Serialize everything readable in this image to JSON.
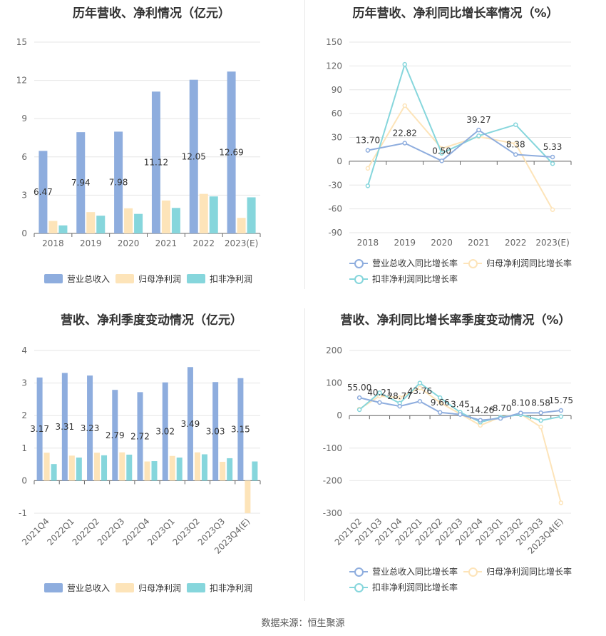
{
  "source_text": "数据来源：恒生聚源",
  "chart_data": [
    {
      "id": "annual_values",
      "type": "bar",
      "title": "历年营收、净利情况（亿元）",
      "categories": [
        "2018",
        "2019",
        "2020",
        "2021",
        "2022",
        "2023(E)"
      ],
      "ylim": [
        0,
        15
      ],
      "yticks": [
        0,
        3,
        6,
        9,
        12,
        15
      ],
      "grid": true,
      "legend_position": "bottom",
      "series": [
        {
          "name": "营业总收入",
          "color": "#8eadde",
          "values": [
            6.47,
            7.94,
            7.98,
            11.12,
            12.05,
            12.69
          ],
          "labels": [
            "6.47",
            "7.94",
            "7.98",
            "11.12",
            "12.05",
            "12.69"
          ]
        },
        {
          "name": "归母净利润",
          "color": "#fde4b9",
          "values": [
            0.98,
            1.67,
            1.97,
            2.58,
            3.1,
            1.22
          ]
        },
        {
          "name": "扣非净利润",
          "color": "#86d6dc",
          "values": [
            0.63,
            1.39,
            1.53,
            2.0,
            2.9,
            2.83
          ]
        }
      ]
    },
    {
      "id": "annual_growth",
      "type": "line",
      "title": "历年营收、净利同比增长率情况（%）",
      "categories": [
        "2018",
        "2019",
        "2020",
        "2021",
        "2022",
        "2023(E)"
      ],
      "ylim": [
        -90,
        150
      ],
      "yticks": [
        -90,
        -60,
        -30,
        0,
        30,
        60,
        90,
        120,
        150
      ],
      "grid": true,
      "legend_position": "bottom",
      "series": [
        {
          "name": "营业总收入同比增长率",
          "color": "#8eadde",
          "values": [
            13.7,
            22.82,
            0.5,
            39.27,
            8.38,
            5.33
          ],
          "labels": [
            "13.70",
            "22.82",
            "0.50",
            "39.27",
            "8.38",
            "5.33"
          ]
        },
        {
          "name": "归母净利润同比增长率",
          "color": "#fde4b9",
          "values": [
            -9,
            70,
            16,
            31,
            22,
            -61
          ]
        },
        {
          "name": "扣非净利润同比增长率",
          "color": "#86d6dc",
          "values": [
            -31,
            122,
            10,
            32,
            46,
            -3
          ]
        }
      ]
    },
    {
      "id": "quarterly_values",
      "type": "bar",
      "title": "营收、净利季度变动情况（亿元）",
      "categories": [
        "2021Q4",
        "2022Q1",
        "2022Q2",
        "2022Q3",
        "2022Q4",
        "2023Q1",
        "2023Q2",
        "2023Q3",
        "2023Q4(E)"
      ],
      "ylim": [
        -1,
        4
      ],
      "yticks": [
        -1,
        0,
        1,
        2,
        3,
        4
      ],
      "grid": true,
      "legend_position": "bottom",
      "series": [
        {
          "name": "营业总收入",
          "color": "#8eadde",
          "values": [
            3.17,
            3.31,
            3.23,
            2.79,
            2.72,
            3.02,
            3.49,
            3.03,
            3.15
          ],
          "labels": [
            "3.17",
            "3.31",
            "3.23",
            "2.79",
            "2.72",
            "3.02",
            "3.49",
            "3.03",
            "3.15"
          ]
        },
        {
          "name": "归母净利润",
          "color": "#fde4b9",
          "values": [
            0.86,
            0.77,
            0.86,
            0.87,
            0.59,
            0.76,
            0.87,
            0.58,
            -1.0
          ]
        },
        {
          "name": "扣非净利润",
          "color": "#86d6dc",
          "values": [
            0.51,
            0.71,
            0.78,
            0.8,
            0.6,
            0.71,
            0.81,
            0.69,
            0.59
          ]
        }
      ]
    },
    {
      "id": "quarterly_growth",
      "type": "line",
      "title": "营收、净利同比增长率季度变动情况（%）",
      "categories": [
        "2021Q2",
        "2021Q3",
        "2021Q4",
        "2022Q1",
        "2022Q2",
        "2022Q3",
        "2022Q4",
        "2023Q1",
        "2023Q2",
        "2023Q3",
        "2023Q4(E)"
      ],
      "ylim": [
        -300,
        200
      ],
      "yticks": [
        -300,
        -200,
        -100,
        0,
        100,
        200
      ],
      "grid": true,
      "legend_position": "bottom",
      "series": [
        {
          "name": "营业总收入同比增长率",
          "color": "#8eadde",
          "values": [
            55.0,
            40.21,
            28.77,
            43.76,
            9.66,
            3.45,
            -14.26,
            -8.7,
            8.1,
            8.58,
            15.75
          ],
          "labels": [
            "55.00",
            "40.21",
            "28.77",
            "43.76",
            "9.66",
            "3.45",
            "-14.26",
            "-8.70",
            "8.10",
            "8.58",
            "15.75"
          ]
        },
        {
          "name": "归母净利润同比增长率",
          "color": "#fde4b9",
          "values": [
            20,
            60,
            55,
            85,
            40,
            5,
            -30,
            -5,
            5,
            -35,
            -268
          ]
        },
        {
          "name": "扣非净利润同比增长率",
          "color": "#86d6dc",
          "values": [
            18,
            70,
            38,
            100,
            55,
            10,
            -20,
            -5,
            3,
            -15,
            -3
          ]
        }
      ]
    }
  ]
}
